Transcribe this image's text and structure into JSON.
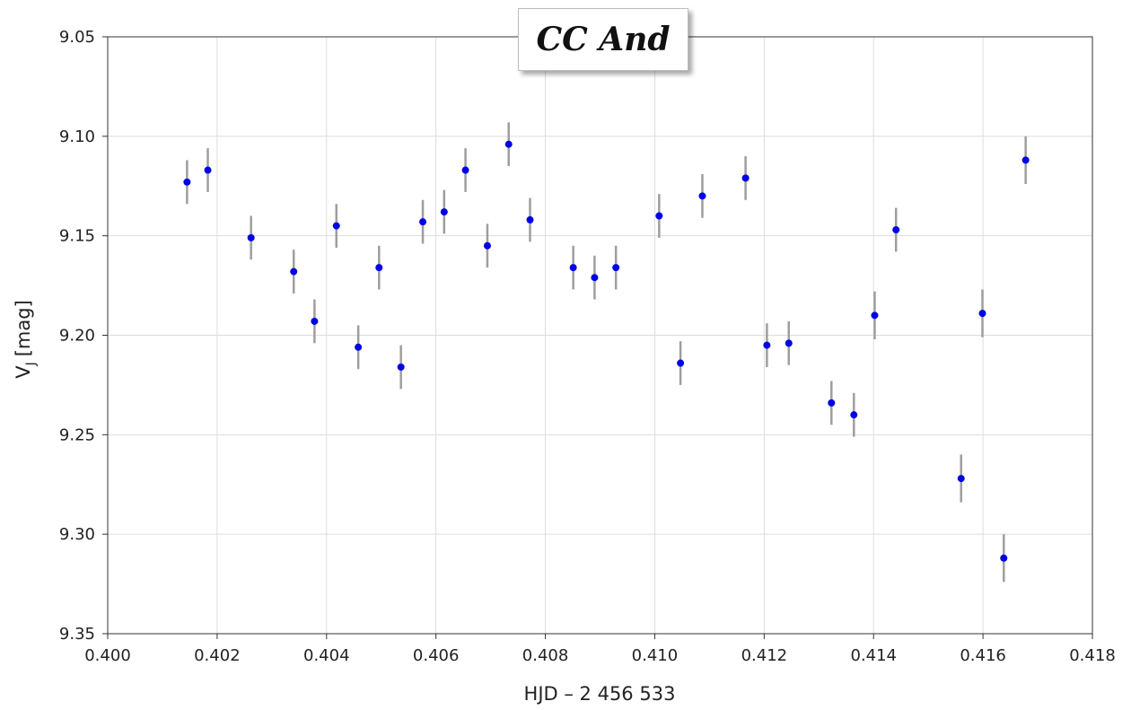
{
  "chart_data": {
    "type": "scatter",
    "title": "CC And",
    "xlabel": "HJD – 2 456 533",
    "ylabel_main": "V",
    "ylabel_sub": "J",
    "ylabel_unit": "[mag]",
    "xlim": [
      0.4,
      0.418
    ],
    "ylim": [
      9.05,
      9.35
    ],
    "y_inverted": true,
    "grid": true,
    "x_ticks": [
      "0.400",
      "0.402",
      "0.404",
      "0.406",
      "0.408",
      "0.410",
      "0.412",
      "0.414",
      "0.416",
      "0.418"
    ],
    "y_ticks": [
      "9.05",
      "9.10",
      "9.15",
      "9.20",
      "9.25",
      "9.30",
      "9.35"
    ],
    "colors": {
      "point": "#0000e6",
      "errorbar": "#9e9e9e",
      "grid": "#dddddd",
      "frame": "#333333"
    },
    "points": [
      {
        "x": 0.40145,
        "y": 9.123,
        "err": 0.011
      },
      {
        "x": 0.40183,
        "y": 9.117,
        "err": 0.011
      },
      {
        "x": 0.40262,
        "y": 9.151,
        "err": 0.011
      },
      {
        "x": 0.4034,
        "y": 9.168,
        "err": 0.011
      },
      {
        "x": 0.40378,
        "y": 9.193,
        "err": 0.011
      },
      {
        "x": 0.40418,
        "y": 9.145,
        "err": 0.011
      },
      {
        "x": 0.40458,
        "y": 9.206,
        "err": 0.011
      },
      {
        "x": 0.40496,
        "y": 9.166,
        "err": 0.011
      },
      {
        "x": 0.40536,
        "y": 9.216,
        "err": 0.011
      },
      {
        "x": 0.40576,
        "y": 9.143,
        "err": 0.011
      },
      {
        "x": 0.40615,
        "y": 9.138,
        "err": 0.011
      },
      {
        "x": 0.40654,
        "y": 9.117,
        "err": 0.011
      },
      {
        "x": 0.40694,
        "y": 9.155,
        "err": 0.011
      },
      {
        "x": 0.40733,
        "y": 9.104,
        "err": 0.011
      },
      {
        "x": 0.40772,
        "y": 9.142,
        "err": 0.011
      },
      {
        "x": 0.40851,
        "y": 9.166,
        "err": 0.011
      },
      {
        "x": 0.4089,
        "y": 9.171,
        "err": 0.011
      },
      {
        "x": 0.40929,
        "y": 9.166,
        "err": 0.011
      },
      {
        "x": 0.41008,
        "y": 9.14,
        "err": 0.011
      },
      {
        "x": 0.41047,
        "y": 9.214,
        "err": 0.011
      },
      {
        "x": 0.41087,
        "y": 9.13,
        "err": 0.011
      },
      {
        "x": 0.41166,
        "y": 9.121,
        "err": 0.011
      },
      {
        "x": 0.41205,
        "y": 9.205,
        "err": 0.011
      },
      {
        "x": 0.41245,
        "y": 9.204,
        "err": 0.011
      },
      {
        "x": 0.41323,
        "y": 9.234,
        "err": 0.011
      },
      {
        "x": 0.41364,
        "y": 9.24,
        "err": 0.011
      },
      {
        "x": 0.41402,
        "y": 9.19,
        "err": 0.012
      },
      {
        "x": 0.41441,
        "y": 9.147,
        "err": 0.011
      },
      {
        "x": 0.4156,
        "y": 9.272,
        "err": 0.012
      },
      {
        "x": 0.41599,
        "y": 9.189,
        "err": 0.012
      },
      {
        "x": 0.41638,
        "y": 9.312,
        "err": 0.012
      },
      {
        "x": 0.41678,
        "y": 9.112,
        "err": 0.012
      }
    ]
  }
}
